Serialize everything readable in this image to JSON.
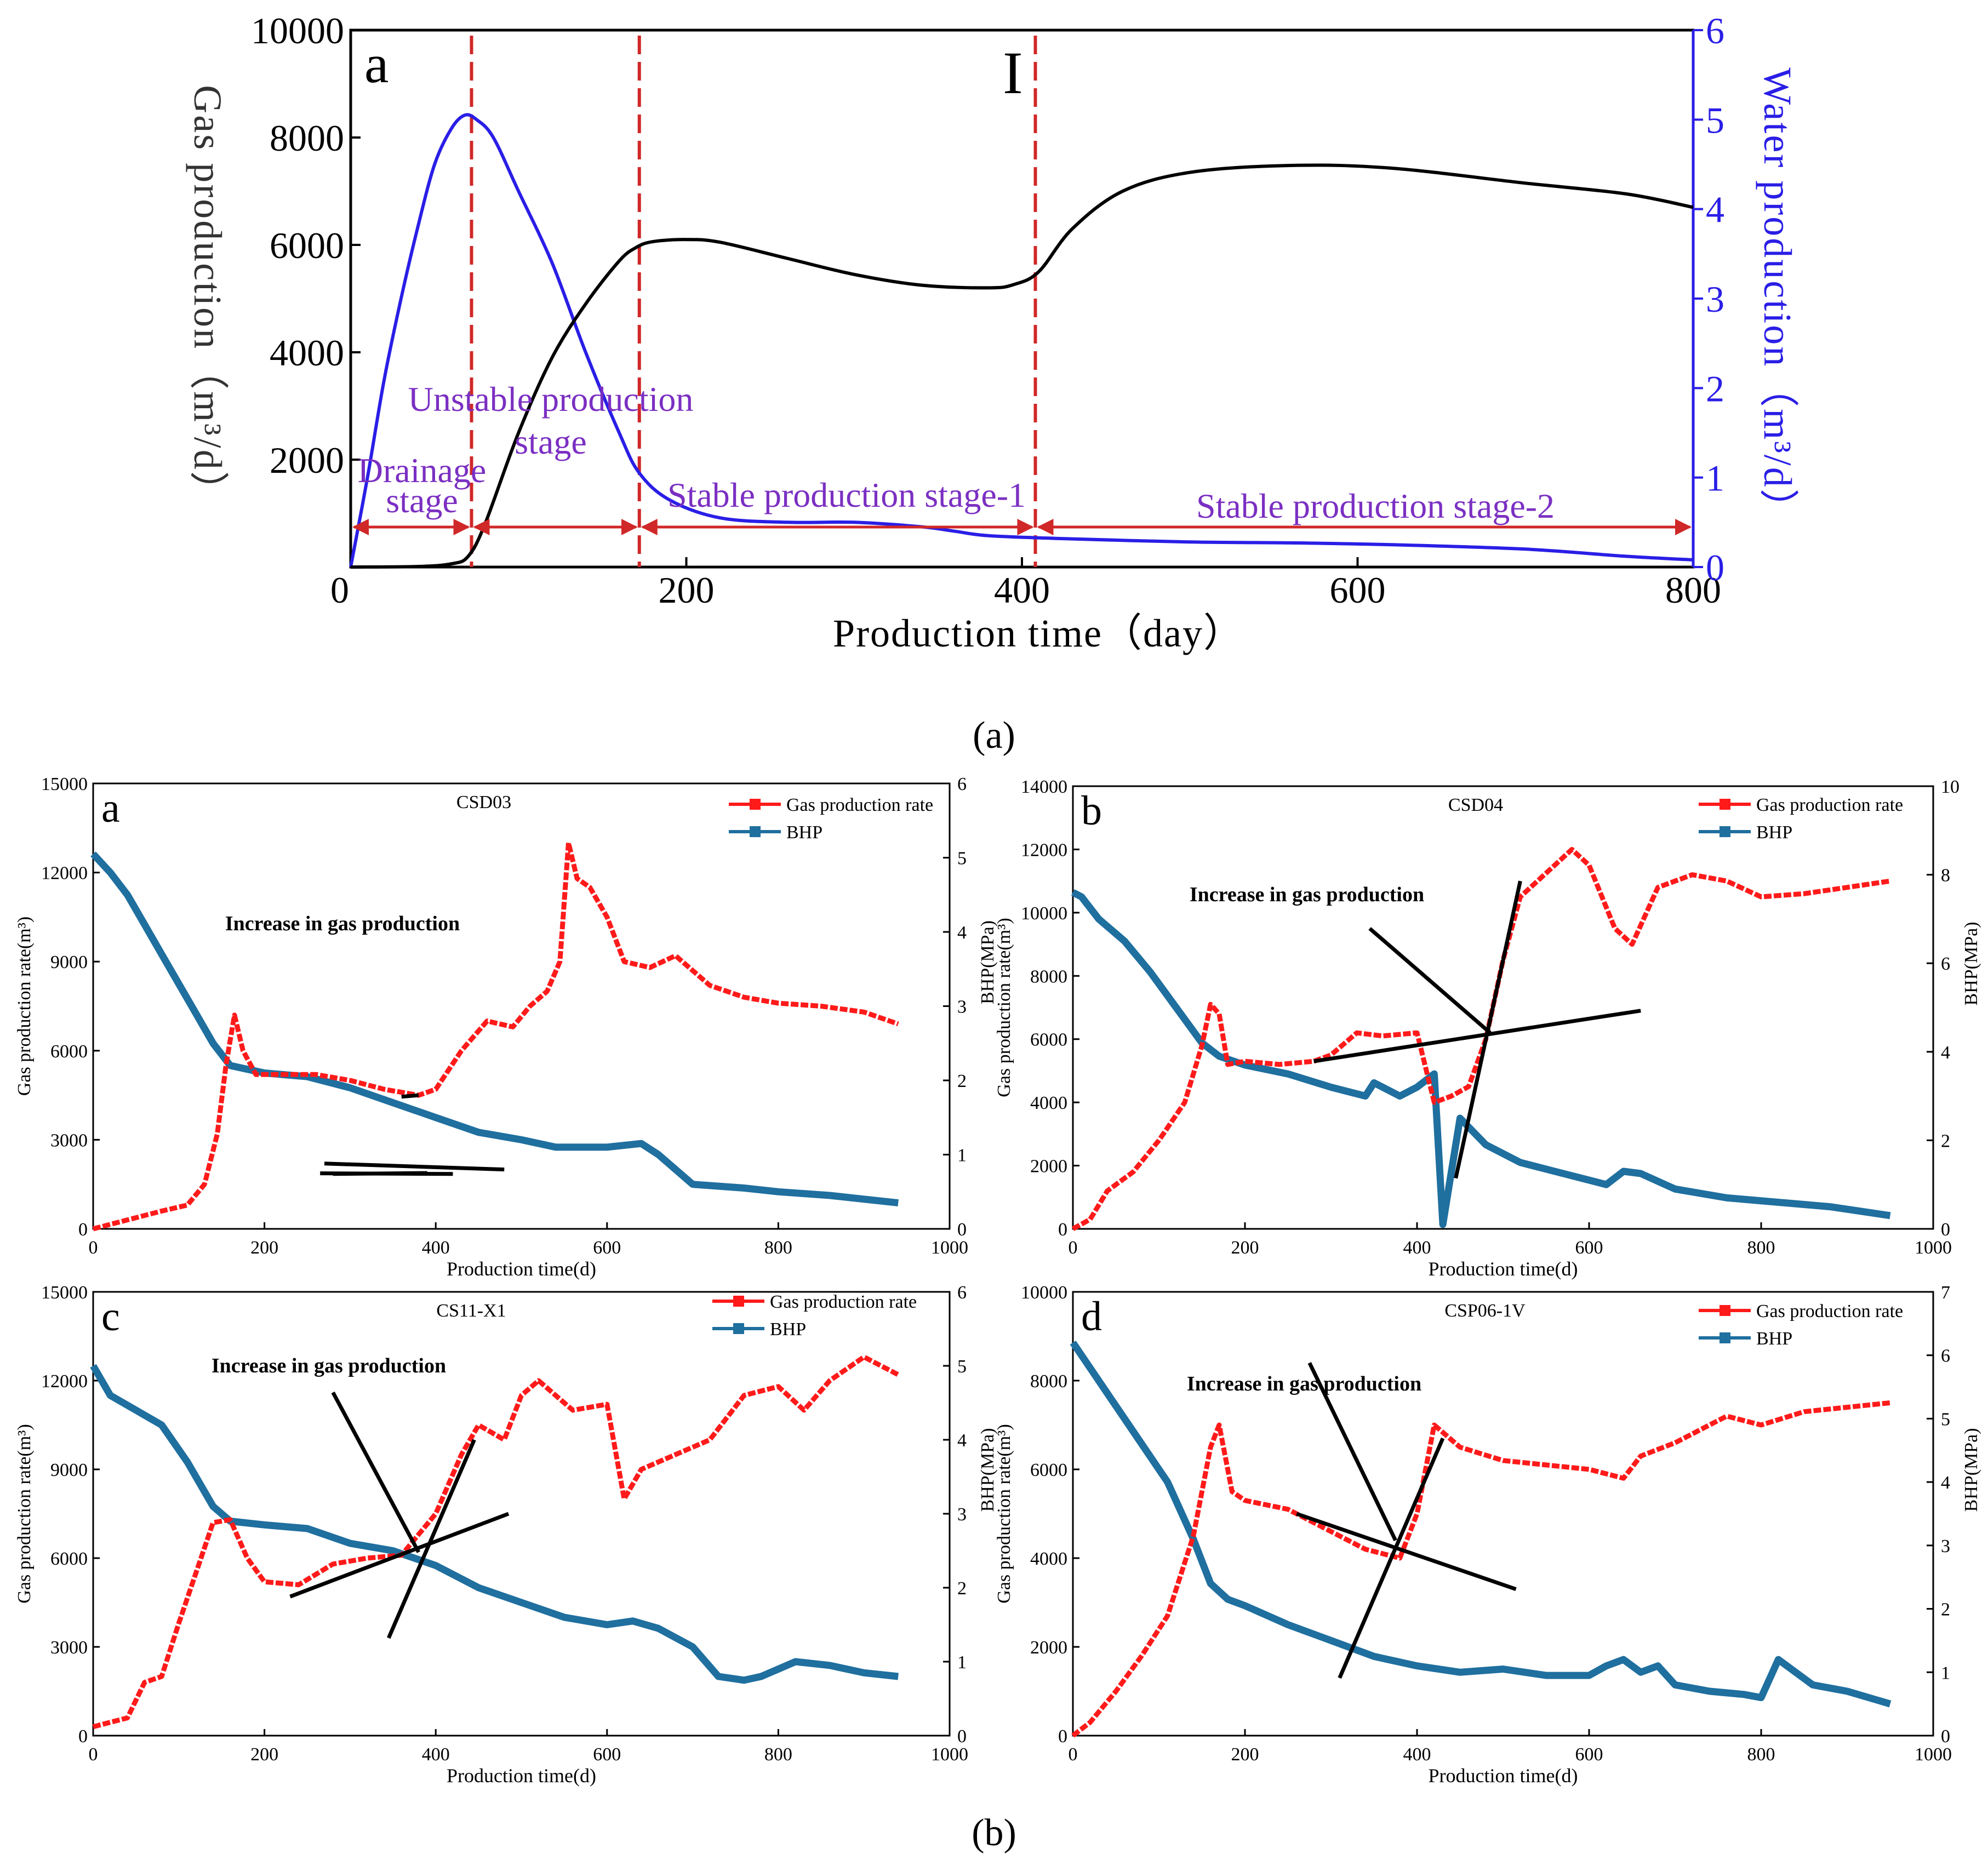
{
  "captions": {
    "a": "(a)",
    "b": "(b)"
  },
  "colors": {
    "gas": "#000000",
    "water": "#2a1ee6",
    "stage_text": "#7b2fc2",
    "stage_line": "#d02828",
    "panel_gas": "#ff1a1a",
    "panel_bhp": "#1f6f9f",
    "trend": "#000000"
  },
  "chart_data": [
    {
      "id": "top",
      "type": "line",
      "panel_letter": "a",
      "marker_text": "I",
      "xlabel": "Production  time（day）",
      "ylabel": "Gas  production（m³/d）",
      "ylabel_right": "Water  production（m³/d）",
      "xlim": [
        0,
        800
      ],
      "ylim": [
        0,
        10000
      ],
      "ylim_right": [
        0,
        6
      ],
      "xticks": [
        "0",
        "200",
        "400",
        "600",
        "800"
      ],
      "yticks": [
        "10000",
        "8000",
        "6000",
        "4000",
        "2000"
      ],
      "yticks_right": [
        "6",
        "5",
        "4",
        "3",
        "2",
        "1",
        "0"
      ],
      "stage_boundaries": [
        72,
        172,
        408
      ],
      "stages": [
        {
          "label": "Drainage",
          "label2": "stage",
          "x_from": 0,
          "x_to": 72
        },
        {
          "label": "Unstable production",
          "label2": "stage",
          "x_from": 72,
          "x_to": 172
        },
        {
          "label": "Stable production stage-1",
          "x_from": 172,
          "x_to": 408
        },
        {
          "label": "Stable production stage-2",
          "x_from": 408,
          "x_to": 800
        }
      ],
      "series": [
        {
          "name": "Gas production",
          "axis": "left",
          "x": [
            0,
            40,
            60,
            70,
            80,
            100,
            120,
            140,
            160,
            170,
            180,
            200,
            220,
            260,
            300,
            340,
            380,
            395,
            410,
            430,
            460,
            500,
            560,
            620,
            700,
            760,
            800
          ],
          "y": [
            0,
            10,
            60,
            200,
            800,
            2500,
            3900,
            4900,
            5700,
            5950,
            6060,
            6100,
            6050,
            5750,
            5450,
            5250,
            5200,
            5260,
            5500,
            6300,
            7000,
            7350,
            7480,
            7430,
            7150,
            6950,
            6700
          ]
        },
        {
          "name": "Water production",
          "axis": "right",
          "x": [
            0,
            10,
            20,
            30,
            40,
            50,
            60,
            68,
            75,
            85,
            100,
            120,
            140,
            160,
            172,
            190,
            220,
            260,
            300,
            340,
            360,
            380,
            420,
            500,
            560,
            620,
            700,
            760,
            800
          ],
          "y": [
            0,
            1.0,
            2.1,
            3.0,
            3.8,
            4.5,
            4.9,
            5.05,
            5.0,
            4.8,
            4.2,
            3.4,
            2.4,
            1.5,
            1.05,
            0.75,
            0.55,
            0.5,
            0.5,
            0.45,
            0.4,
            0.35,
            0.32,
            0.28,
            0.27,
            0.25,
            0.2,
            0.12,
            0.08
          ]
        }
      ]
    },
    {
      "id": "a",
      "type": "line",
      "panel_letter": "a",
      "title": "CSD03",
      "annotation": "Increase in gas production",
      "xlabel": "Production time(d)",
      "ylabel": "Gas production rate(m³)",
      "ylabel_right": "BHP(MPa)",
      "xlim": [
        0,
        1000
      ],
      "ylim": [
        0,
        15000
      ],
      "ylim_right": [
        0,
        6
      ],
      "xticks": [
        "0",
        "200",
        "400",
        "600",
        "800",
        "1000"
      ],
      "yticks": [
        "0",
        "3000",
        "6000",
        "9000",
        "12000",
        "15000"
      ],
      "yticks_right": [
        "0",
        "1",
        "2",
        "3",
        "4",
        "5",
        "6"
      ],
      "legend": [
        "Gas production rate",
        "BHP"
      ],
      "series": [
        {
          "name": "Gas production rate",
          "axis": "left",
          "x": [
            0,
            40,
            80,
            110,
            130,
            145,
            155,
            165,
            175,
            190,
            220,
            260,
            300,
            340,
            380,
            400,
            430,
            460,
            490,
            510,
            530,
            545,
            555,
            565,
            580,
            600,
            620,
            650,
            680,
            720,
            760,
            800,
            850,
            900,
            940
          ],
          "y": [
            0,
            300,
            600,
            800,
            1500,
            3200,
            5500,
            7200,
            6000,
            5200,
            5200,
            5200,
            5000,
            4700,
            4500,
            4700,
            6000,
            7000,
            6800,
            7500,
            8000,
            9000,
            13000,
            11800,
            11500,
            10500,
            9000,
            8800,
            9200,
            8200,
            7800,
            7600,
            7500,
            7300,
            6900
          ]
        },
        {
          "name": "BHP",
          "axis": "right",
          "x": [
            0,
            20,
            40,
            60,
            80,
            100,
            120,
            140,
            160,
            200,
            250,
            300,
            350,
            400,
            450,
            500,
            540,
            560,
            600,
            640,
            660,
            700,
            760,
            800,
            860,
            900,
            940
          ],
          "y": [
            5.05,
            4.8,
            4.5,
            4.1,
            3.7,
            3.3,
            2.9,
            2.5,
            2.2,
            2.1,
            2.05,
            1.9,
            1.7,
            1.5,
            1.3,
            1.2,
            1.1,
            1.1,
            1.1,
            1.15,
            1.0,
            0.6,
            0.55,
            0.5,
            0.45,
            0.4,
            0.35
          ]
        }
      ]
    },
    {
      "id": "b",
      "type": "line",
      "panel_letter": "b",
      "title": "CSD04",
      "annotation": "Increase in gas production",
      "xlabel": "Production time(d)",
      "ylabel": "Gas production rate(m³)",
      "ylabel_right": "BHP(MPa)",
      "xlim": [
        0,
        1000
      ],
      "ylim": [
        0,
        14000
      ],
      "ylim_right": [
        0,
        10
      ],
      "xticks": [
        "0",
        "200",
        "400",
        "600",
        "800",
        "1000"
      ],
      "yticks": [
        "0",
        "2000",
        "4000",
        "6000",
        "8000",
        "10000",
        "12000",
        "14000"
      ],
      "yticks_right": [
        "0",
        "2",
        "4",
        "6",
        "8",
        "10"
      ],
      "legend": [
        "Gas production rate",
        "BHP"
      ],
      "series": [
        {
          "name": "Gas production rate",
          "axis": "left",
          "x": [
            0,
            20,
            40,
            70,
            100,
            130,
            150,
            160,
            170,
            180,
            200,
            240,
            280,
            300,
            330,
            360,
            400,
            420,
            440,
            460,
            480,
            500,
            520,
            540,
            560,
            580,
            600,
            630,
            650,
            680,
            720,
            760,
            800,
            850,
            900,
            950
          ],
          "y": [
            0,
            300,
            1200,
            1800,
            2800,
            4000,
            5800,
            7100,
            6800,
            5200,
            5300,
            5200,
            5300,
            5500,
            6200,
            6100,
            6200,
            4000,
            4200,
            4500,
            6000,
            8500,
            10500,
            11000,
            11500,
            12000,
            11500,
            9500,
            9000,
            10800,
            11200,
            11000,
            10500,
            10600,
            10800,
            11000
          ]
        },
        {
          "name": "BHP",
          "axis": "right",
          "x": [
            0,
            10,
            30,
            60,
            90,
            120,
            150,
            170,
            200,
            250,
            300,
            340,
            350,
            380,
            400,
            420,
            430,
            450,
            480,
            520,
            560,
            600,
            620,
            640,
            660,
            700,
            760,
            820,
            880,
            950
          ],
          "y": [
            7.6,
            7.5,
            7.0,
            6.5,
            5.8,
            5.0,
            4.2,
            3.9,
            3.7,
            3.5,
            3.2,
            3.0,
            3.3,
            3.0,
            3.2,
            3.5,
            0.1,
            2.5,
            1.9,
            1.5,
            1.3,
            1.1,
            1.0,
            1.3,
            1.25,
            0.9,
            0.7,
            0.6,
            0.5,
            0.3
          ]
        }
      ]
    },
    {
      "id": "c",
      "type": "line",
      "panel_letter": "c",
      "title": "CS11-X1",
      "annotation": "Increase in gas production",
      "xlabel": "Production time(d)",
      "ylabel": "Gas production rate(m³)",
      "ylabel_right": "BHP(MPa)",
      "xlim": [
        0,
        1000
      ],
      "ylim": [
        0,
        15000
      ],
      "ylim_right": [
        0,
        6
      ],
      "xticks": [
        "0",
        "200",
        "400",
        "600",
        "800",
        "1000"
      ],
      "yticks": [
        "0",
        "3000",
        "6000",
        "9000",
        "12000",
        "15000"
      ],
      "yticks_right": [
        "0",
        "1",
        "2",
        "3",
        "4",
        "5",
        "6"
      ],
      "legend": [
        "Gas production rate",
        "BHP"
      ],
      "series": [
        {
          "name": "Gas production rate",
          "axis": "left",
          "x": [
            0,
            40,
            60,
            80,
            100,
            120,
            140,
            160,
            180,
            200,
            240,
            280,
            320,
            360,
            400,
            430,
            450,
            480,
            500,
            520,
            560,
            600,
            620,
            640,
            680,
            720,
            760,
            800,
            830,
            860,
            900,
            940
          ],
          "y": [
            300,
            600,
            1800,
            2000,
            3800,
            5500,
            7200,
            7300,
            6000,
            5200,
            5100,
            5800,
            6000,
            6100,
            7500,
            9500,
            10500,
            10000,
            11500,
            12000,
            11000,
            11200,
            8000,
            9000,
            9500,
            10000,
            11500,
            11800,
            11000,
            12000,
            12800,
            12200
          ]
        },
        {
          "name": "BHP",
          "axis": "right",
          "x": [
            0,
            20,
            50,
            80,
            110,
            140,
            160,
            200,
            250,
            300,
            350,
            400,
            450,
            500,
            550,
            600,
            630,
            660,
            700,
            730,
            760,
            780,
            800,
            820,
            860,
            900,
            940
          ],
          "y": [
            5.0,
            4.6,
            4.4,
            4.2,
            3.7,
            3.1,
            2.9,
            2.85,
            2.8,
            2.6,
            2.5,
            2.3,
            2.0,
            1.8,
            1.6,
            1.5,
            1.55,
            1.45,
            1.2,
            0.8,
            0.75,
            0.8,
            0.9,
            1.0,
            0.95,
            0.85,
            0.8
          ]
        }
      ]
    },
    {
      "id": "d",
      "type": "line",
      "panel_letter": "d",
      "title": "CSP06-1V",
      "annotation": "Increase in gas production",
      "xlabel": "Production time(d)",
      "ylabel": "Gas production rate(m³)",
      "ylabel_right": "BHP(MPa)",
      "xlim": [
        0,
        1000
      ],
      "ylim": [
        0,
        10000
      ],
      "ylim_right": [
        0,
        7
      ],
      "xticks": [
        "0",
        "200",
        "400",
        "600",
        "800",
        "1000"
      ],
      "yticks": [
        "0",
        "2000",
        "4000",
        "6000",
        "8000",
        "10000"
      ],
      "yticks_right": [
        "0",
        "1",
        "2",
        "3",
        "4",
        "5",
        "6",
        "7"
      ],
      "legend": [
        "Gas production rate",
        "BHP"
      ],
      "series": [
        {
          "name": "Gas production rate",
          "axis": "left",
          "x": [
            0,
            20,
            50,
            80,
            110,
            140,
            160,
            170,
            185,
            200,
            250,
            300,
            340,
            380,
            400,
            420,
            450,
            500,
            550,
            600,
            640,
            660,
            700,
            740,
            760,
            800,
            850,
            900,
            950
          ],
          "y": [
            0,
            300,
            1000,
            1800,
            2700,
            4500,
            6500,
            7000,
            5500,
            5300,
            5100,
            4600,
            4200,
            4000,
            5000,
            7000,
            6500,
            6200,
            6100,
            6000,
            5800,
            6300,
            6600,
            7000,
            7200,
            7000,
            7300,
            7400,
            7500
          ]
        },
        {
          "name": "BHP",
          "axis": "right",
          "x": [
            0,
            20,
            50,
            80,
            110,
            140,
            160,
            180,
            200,
            250,
            300,
            350,
            400,
            450,
            500,
            550,
            600,
            620,
            640,
            660,
            680,
            700,
            740,
            780,
            800,
            820,
            860,
            900,
            950
          ],
          "y": [
            6.2,
            5.8,
            5.2,
            4.6,
            4.0,
            3.1,
            2.4,
            2.15,
            2.05,
            1.75,
            1.5,
            1.25,
            1.1,
            1.0,
            1.05,
            0.95,
            0.95,
            1.1,
            1.2,
            1.0,
            1.1,
            0.8,
            0.7,
            0.65,
            0.6,
            1.2,
            0.8,
            0.7,
            0.5
          ]
        }
      ]
    }
  ]
}
